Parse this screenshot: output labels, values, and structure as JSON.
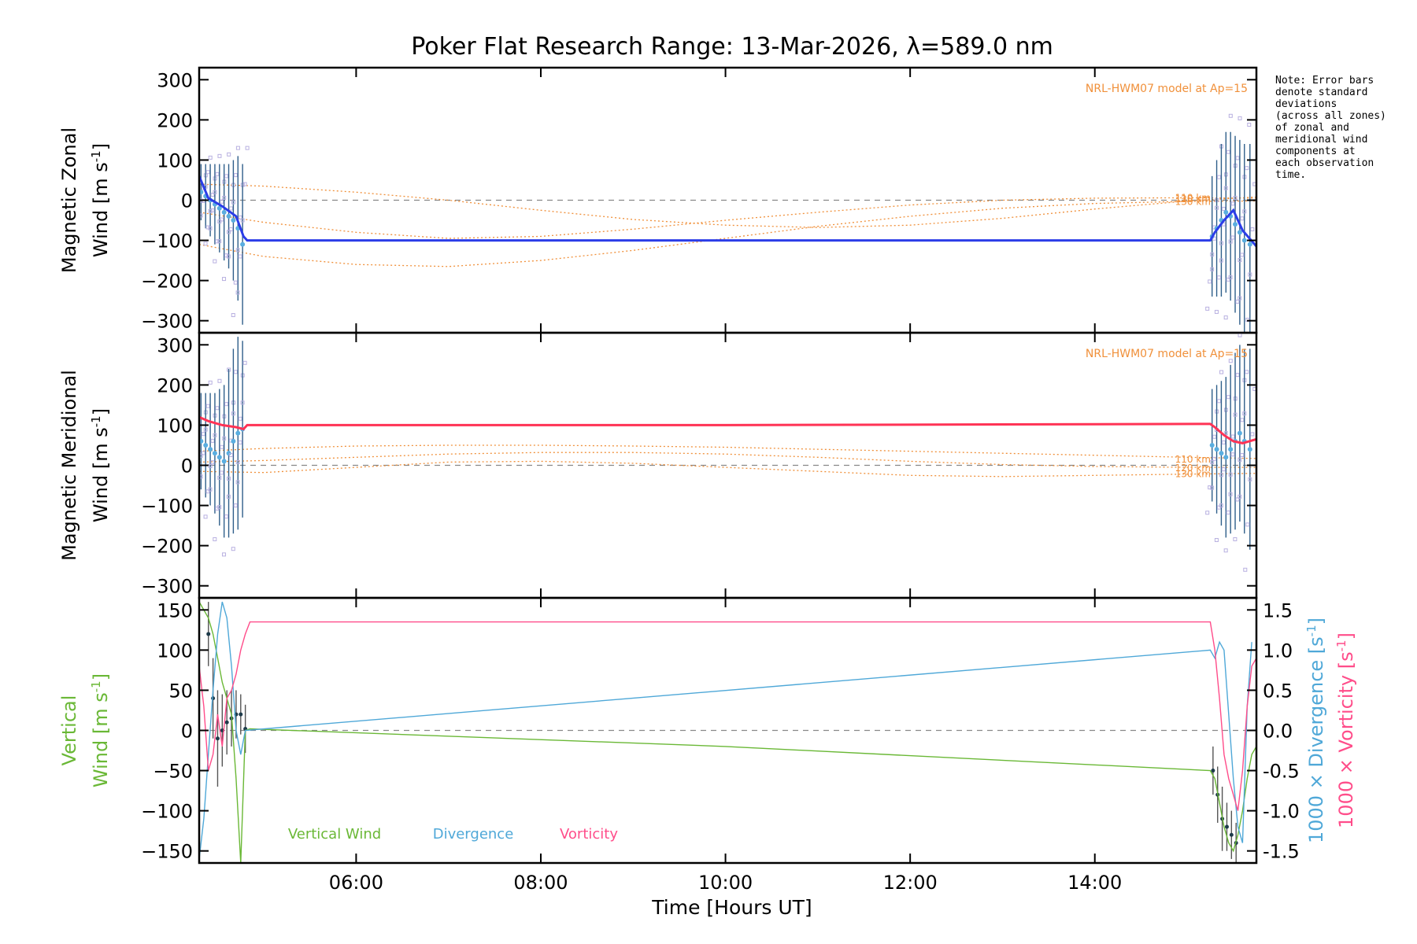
{
  "chart_data": {
    "title": "Poker Flat Research Range: 13-Mar-2026, λ=589.0 nm",
    "note": "Note: Error bars\ndenote standard\ndeviations\n(across all zones)\nof zonal and\nmeridional wind\ncomponents at\neach observation\ntime.",
    "x_axis": {
      "label": "Time [Hours UT]",
      "range": [
        4.3,
        15.75
      ],
      "ticks": [
        6,
        8,
        10,
        12,
        14
      ],
      "tick_labels": [
        "06:00",
        "08:00",
        "10:00",
        "12:00",
        "14:00"
      ]
    },
    "colors": {
      "zonal": "#2b3de8",
      "zonal_points": "#5aaee0",
      "meridional": "#ff3355",
      "model": "#f0903a",
      "scatter": "#b8b0e0",
      "errorbar": "#2f5f8a",
      "vertical": "#6ab836",
      "divergence": "#4fa8d8",
      "vorticity": "#ff4d8a"
    },
    "panels": [
      {
        "type": "line",
        "id": "zonal",
        "ylabel_1": "Magnetic Zonal",
        "ylabel_2": "Wind",
        "ylabel_unit": "[m s",
        "ylabel_exp": "-1",
        "ylabel_close": "]",
        "ylim": [
          -330,
          330
        ],
        "yticks": [
          300,
          200,
          100,
          0,
          -100,
          -200,
          -300
        ],
        "model_label": "NRL-HWM07 model at Ap=15",
        "model_series": [
          {
            "name": "110 km",
            "x": [
              4.3,
              5,
              6,
              7,
              8,
              9,
              10,
              11,
              12,
              13,
              14,
              15,
              15.75
            ],
            "y": [
              40,
              35,
              20,
              0,
              -25,
              -48,
              -62,
              -68,
              -62,
              -45,
              -22,
              -2,
              8
            ]
          },
          {
            "name": "120 km",
            "x": [
              4.3,
              5,
              6,
              7,
              8,
              9,
              10,
              11,
              12,
              13,
              14,
              15,
              15.75
            ],
            "y": [
              -30,
              -55,
              -80,
              -95,
              -90,
              -72,
              -50,
              -30,
              -12,
              0,
              5,
              6,
              5
            ]
          },
          {
            "name": "130 km",
            "x": [
              4.3,
              5,
              6,
              7,
              8,
              9,
              10,
              11,
              12,
              13,
              14,
              15,
              15.75
            ],
            "y": [
              -110,
              -140,
              -160,
              -165,
              -150,
              -125,
              -95,
              -65,
              -40,
              -20,
              -8,
              -3,
              -2
            ]
          }
        ],
        "fit_line": {
          "x": [
            4.3,
            4.4,
            4.55,
            4.7,
            4.78,
            4.82,
            10,
            15.25,
            15.3,
            15.4,
            15.5,
            15.6,
            15.75
          ],
          "y": [
            60,
            5,
            -15,
            -40,
            -90,
            -100,
            -100,
            -100,
            -80,
            -50,
            -25,
            -75,
            -115
          ]
        },
        "observations": [
          {
            "x": 4.32,
            "y": 20,
            "err": 70
          },
          {
            "x": 4.37,
            "y": 10,
            "err": 80
          },
          {
            "x": 4.42,
            "y": 0,
            "err": 90
          },
          {
            "x": 4.47,
            "y": -10,
            "err": 100
          },
          {
            "x": 4.52,
            "y": -20,
            "err": 110
          },
          {
            "x": 4.57,
            "y": -30,
            "err": 120
          },
          {
            "x": 4.62,
            "y": -40,
            "err": 130
          },
          {
            "x": 4.67,
            "y": -50,
            "err": 150
          },
          {
            "x": 4.72,
            "y": -70,
            "err": 180
          },
          {
            "x": 4.77,
            "y": -110,
            "err": 200
          },
          {
            "x": 15.27,
            "y": -90,
            "err": 150
          },
          {
            "x": 15.32,
            "y": -70,
            "err": 170
          },
          {
            "x": 15.37,
            "y": -50,
            "err": 190
          },
          {
            "x": 15.42,
            "y": -30,
            "err": 200
          },
          {
            "x": 15.47,
            "y": -40,
            "err": 210
          },
          {
            "x": 15.52,
            "y": -60,
            "err": 220
          },
          {
            "x": 15.57,
            "y": -80,
            "err": 230
          },
          {
            "x": 15.62,
            "y": -100,
            "err": 240
          },
          {
            "x": 15.68,
            "y": -110,
            "err": 250
          }
        ]
      },
      {
        "type": "line",
        "id": "meridional",
        "ylabel_1": "Magnetic Meridional",
        "ylabel_2": "Wind",
        "ylabel_unit": "[m s",
        "ylabel_exp": "-1",
        "ylabel_close": "]",
        "ylim": [
          -330,
          330
        ],
        "yticks": [
          300,
          200,
          100,
          0,
          -100,
          -200,
          -300
        ],
        "model_label": "NRL-HWM07 model at Ap=15",
        "model_series": [
          {
            "name": "110 km",
            "x": [
              4.3,
              5,
              6,
              7,
              8,
              9,
              10,
              11,
              12,
              13,
              14,
              15,
              15.75
            ],
            "y": [
              35,
              42,
              48,
              50,
              50,
              48,
              45,
              40,
              35,
              30,
              25,
              20,
              17
            ]
          },
          {
            "name": "120 km",
            "x": [
              4.3,
              5,
              6,
              7,
              8,
              9,
              10,
              11,
              12,
              13,
              14,
              15,
              15.75
            ],
            "y": [
              8,
              12,
              20,
              28,
              32,
              32,
              28,
              20,
              10,
              2,
              -3,
              -5,
              -5
            ]
          },
          {
            "name": "130 km",
            "x": [
              4.3,
              5,
              6,
              7,
              8,
              9,
              10,
              11,
              12,
              13,
              14,
              15,
              15.75
            ],
            "y": [
              -15,
              -18,
              -5,
              8,
              10,
              5,
              -5,
              -15,
              -25,
              -28,
              -25,
              -22,
              -20
            ]
          }
        ],
        "fit_line": {
          "x": [
            4.3,
            4.4,
            4.55,
            4.7,
            4.78,
            4.82,
            10,
            15.25,
            15.3,
            15.4,
            15.5,
            15.6,
            15.75
          ],
          "y": [
            120,
            110,
            100,
            95,
            90,
            100,
            100,
            103,
            95,
            75,
            60,
            55,
            65
          ]
        },
        "observations": [
          {
            "x": 4.32,
            "y": 60,
            "err": 120
          },
          {
            "x": 4.37,
            "y": 50,
            "err": 130
          },
          {
            "x": 4.42,
            "y": 40,
            "err": 140
          },
          {
            "x": 4.47,
            "y": 30,
            "err": 150
          },
          {
            "x": 4.52,
            "y": 20,
            "err": 170
          },
          {
            "x": 4.57,
            "y": 10,
            "err": 190
          },
          {
            "x": 4.62,
            "y": 30,
            "err": 210
          },
          {
            "x": 4.67,
            "y": 60,
            "err": 230
          },
          {
            "x": 4.72,
            "y": 80,
            "err": 240
          },
          {
            "x": 4.77,
            "y": 90,
            "err": 220
          },
          {
            "x": 15.27,
            "y": 50,
            "err": 140
          },
          {
            "x": 15.32,
            "y": 40,
            "err": 160
          },
          {
            "x": 15.37,
            "y": 30,
            "err": 180
          },
          {
            "x": 15.42,
            "y": 20,
            "err": 200
          },
          {
            "x": 15.47,
            "y": 40,
            "err": 210
          },
          {
            "x": 15.52,
            "y": 60,
            "err": 220
          },
          {
            "x": 15.57,
            "y": 80,
            "err": 220
          },
          {
            "x": 15.62,
            "y": 60,
            "err": 230
          },
          {
            "x": 15.68,
            "y": 40,
            "err": 250
          }
        ]
      },
      {
        "type": "line",
        "id": "vertical",
        "ylabel_1": "Vertical",
        "ylabel_2": "Wind",
        "ylabel_unit": "[m s",
        "ylabel_exp": "-1",
        "ylabel_close": "]",
        "ylim": [
          -165,
          165
        ],
        "yticks": [
          150,
          100,
          50,
          0,
          -50,
          -100,
          -150
        ],
        "y2lim": [
          -1.65,
          1.65
        ],
        "y2ticks": [
          1.5,
          1.0,
          0.5,
          0.0,
          -0.5,
          -1.0,
          -1.5
        ],
        "y2label_divergence": "1000 × Divergence",
        "y2label_vorticity": "1000 × Vorticity",
        "y2label_unit": "[s",
        "y2label_exp": "-1",
        "y2label_close": "]",
        "legend": [
          "Vertical Wind",
          "Divergence",
          "Vorticity"
        ],
        "series": [
          {
            "name": "Vertical Wind",
            "axis": "left",
            "x": [
              4.3,
              4.35,
              4.4,
              4.45,
              4.5,
              4.55,
              4.6,
              4.65,
              4.7,
              4.75,
              4.8,
              4.85,
              10,
              15.25,
              15.3,
              15.35,
              15.4,
              15.45,
              15.5,
              15.55,
              15.6,
              15.65,
              15.7,
              15.75
            ],
            "y": [
              160,
              150,
              140,
              120,
              90,
              60,
              40,
              20,
              -60,
              -165,
              0,
              2,
              -20,
              -50,
              -60,
              -90,
              -120,
              -140,
              -150,
              -130,
              -100,
              -60,
              -30,
              -20
            ]
          },
          {
            "name": "Divergence",
            "axis": "right",
            "x": [
              4.3,
              4.35,
              4.4,
              4.45,
              4.5,
              4.55,
              4.6,
              4.65,
              4.7,
              4.75,
              4.8,
              15.25,
              15.3,
              15.35,
              15.4,
              15.45,
              15.5,
              15.55,
              15.6,
              15.65,
              15.7
            ],
            "y": [
              -1.6,
              -1.1,
              -0.3,
              0.5,
              1.2,
              1.6,
              1.4,
              0.8,
              0.0,
              -0.3,
              0.0,
              1.0,
              0.9,
              1.1,
              1.0,
              0.2,
              -0.6,
              -1.2,
              -1.4,
              0.3,
              1.1
            ]
          },
          {
            "name": "Vorticity",
            "axis": "right",
            "x": [
              4.3,
              4.35,
              4.4,
              4.45,
              4.5,
              4.55,
              4.6,
              4.65,
              4.7,
              4.75,
              4.8,
              4.85,
              10,
              15.25,
              15.3,
              15.35,
              15.4,
              15.45,
              15.5,
              15.55,
              15.6,
              15.65,
              15.7,
              15.75
            ],
            "y": [
              0.8,
              0.3,
              -0.5,
              -0.3,
              0.2,
              -0.2,
              0.4,
              0.5,
              0.7,
              1.0,
              1.2,
              1.35,
              1.35,
              1.35,
              1.0,
              0.4,
              -0.3,
              -0.6,
              -0.8,
              -1.0,
              -0.5,
              0.3,
              0.8,
              0.9
            ]
          }
        ],
        "observations": [
          {
            "x": 4.4,
            "y": 120,
            "err": 40
          },
          {
            "x": 4.45,
            "y": 40,
            "err": 50
          },
          {
            "x": 4.5,
            "y": -10,
            "err": 60
          },
          {
            "x": 4.55,
            "y": 0,
            "err": 45
          },
          {
            "x": 4.6,
            "y": 10,
            "err": 40
          },
          {
            "x": 4.65,
            "y": 15,
            "err": 35
          },
          {
            "x": 4.7,
            "y": 20,
            "err": 30
          },
          {
            "x": 4.75,
            "y": 20,
            "err": 25
          },
          {
            "x": 4.8,
            "y": 2,
            "err": 30
          },
          {
            "x": 15.28,
            "y": -50,
            "err": 30
          },
          {
            "x": 15.33,
            "y": -80,
            "err": 35
          },
          {
            "x": 15.38,
            "y": -110,
            "err": 40
          },
          {
            "x": 15.43,
            "y": -120,
            "err": 30
          },
          {
            "x": 15.48,
            "y": -130,
            "err": 30
          },
          {
            "x": 15.53,
            "y": -140,
            "err": 25
          }
        ]
      }
    ]
  }
}
